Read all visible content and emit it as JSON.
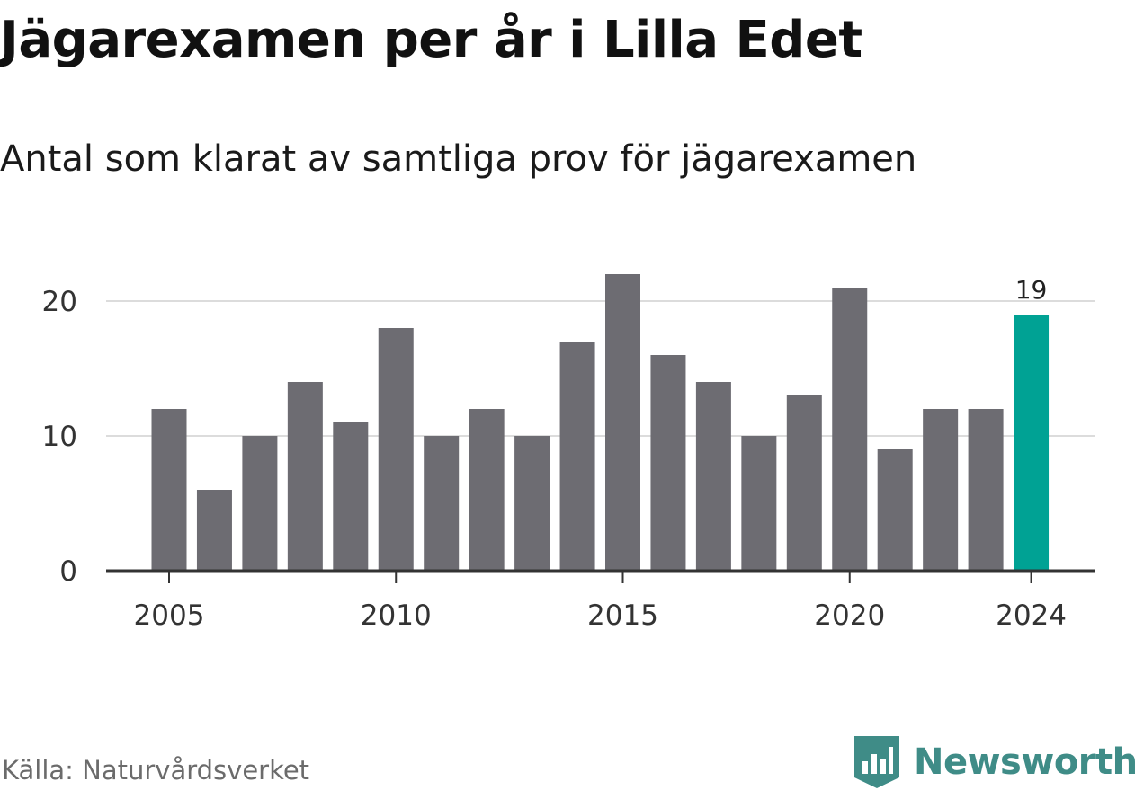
{
  "title": "Jägarexamen per år i Lilla Edet",
  "subtitle": "Antal som klarat av samtliga prov för jägarexamen",
  "source": "Källa: Naturvårdsverket",
  "brand": "Newsworthy",
  "colors": {
    "bar": "#6d6c72",
    "highlight": "#00a294",
    "grid": "#dcdcdc",
    "axis": "#333333",
    "brand": "#3f8c87"
  },
  "chart_data": {
    "type": "bar",
    "categories": [
      "2005",
      "2006",
      "2007",
      "2008",
      "2009",
      "2010",
      "2011",
      "2012",
      "2013",
      "2014",
      "2015",
      "2016",
      "2017",
      "2018",
      "2019",
      "2020",
      "2021",
      "2022",
      "2023",
      "2024"
    ],
    "values": [
      12,
      6,
      10,
      14,
      11,
      18,
      10,
      12,
      10,
      17,
      22,
      16,
      14,
      10,
      13,
      21,
      9,
      12,
      12,
      19
    ],
    "highlight_index": 19,
    "x_tick_labels": [
      "2005",
      "2010",
      "2015",
      "2020",
      "2024"
    ],
    "y_ticks": [
      0,
      10,
      20
    ],
    "ylim": [
      0,
      22
    ],
    "grid": true,
    "annotations": [
      {
        "category": "2024",
        "label": "19"
      }
    ],
    "title": "Jägarexamen per år i Lilla Edet",
    "subtitle": "Antal som klarat av samtliga prov för jägarexamen",
    "xlabel": "",
    "ylabel": ""
  }
}
